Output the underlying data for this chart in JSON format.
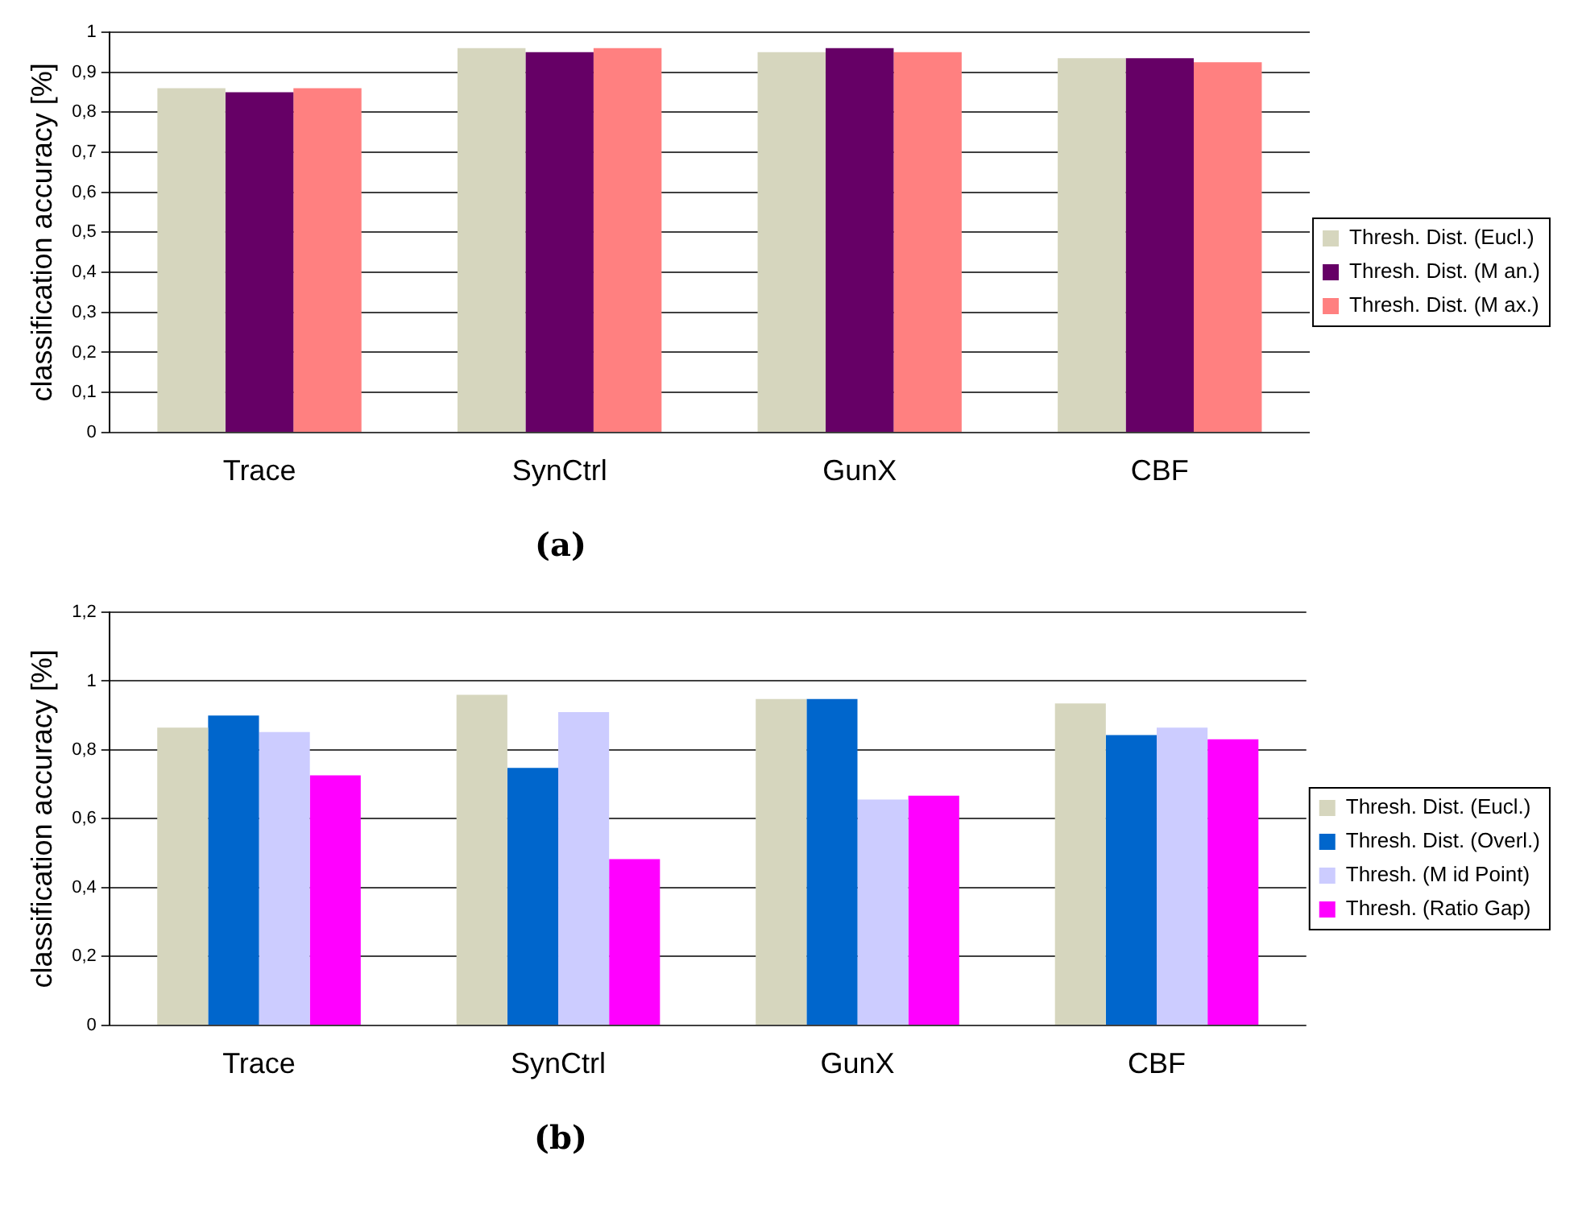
{
  "chart_data": [
    {
      "type": "bar",
      "ylabel": "classification accuracy [%]",
      "categories": [
        "Trace",
        "SynCtrl",
        "GunX",
        "CBF"
      ],
      "series": [
        {
          "name": "Thresh. Dist. (Eucl.)",
          "color": "#d6d6be",
          "values": [
            0.86,
            0.96,
            0.95,
            0.935
          ]
        },
        {
          "name": "Thresh. Dist. (M an.)",
          "color": "#660066",
          "values": [
            0.85,
            0.95,
            0.96,
            0.935
          ]
        },
        {
          "name": "Thresh. Dist. (M ax.)",
          "color": "#ff8080",
          "values": [
            0.86,
            0.96,
            0.95,
            0.925
          ]
        }
      ],
      "ylim": [
        0,
        1
      ],
      "yticks": [
        {
          "value": 0,
          "label": "0"
        },
        {
          "value": 0.1,
          "label": "0,1"
        },
        {
          "value": 0.2,
          "label": "0,2"
        },
        {
          "value": 0.3,
          "label": "0,3"
        },
        {
          "value": 0.4,
          "label": "0,4"
        },
        {
          "value": 0.5,
          "label": "0,5"
        },
        {
          "value": 0.6,
          "label": "0,6"
        },
        {
          "value": 0.7,
          "label": "0,7"
        },
        {
          "value": 0.8,
          "label": "0,8"
        },
        {
          "value": 0.9,
          "label": "0,9"
        },
        {
          "value": 1,
          "label": "1"
        }
      ],
      "grid": "y",
      "legend": "right",
      "annotations": [
        "(a)"
      ]
    },
    {
      "type": "bar",
      "ylabel": "classification accuracy [%]",
      "categories": [
        "Trace",
        "SynCtrl",
        "GunX",
        "CBF"
      ],
      "series": [
        {
          "name": "Thresh. Dist. (Eucl.)",
          "color": "#d6d6be",
          "values": [
            0.865,
            0.96,
            0.948,
            0.935
          ]
        },
        {
          "name": "Thresh. Dist. (Overl.)",
          "color": "#0066cc",
          "values": [
            0.9,
            0.748,
            0.948,
            0.843
          ]
        },
        {
          "name": "Thresh. (M id Point)",
          "color": "#ccccff",
          "values": [
            0.852,
            0.91,
            0.656,
            0.865
          ]
        },
        {
          "name": "Thresh. (Ratio Gap)",
          "color": "#ff00ff",
          "values": [
            0.726,
            0.483,
            0.667,
            0.831
          ]
        }
      ],
      "ylim": [
        0,
        1.2
      ],
      "yticks": [
        {
          "value": 0,
          "label": "0"
        },
        {
          "value": 0.2,
          "label": "0,2"
        },
        {
          "value": 0.4,
          "label": "0,4"
        },
        {
          "value": 0.6,
          "label": "0,6"
        },
        {
          "value": 0.8,
          "label": "0,8"
        },
        {
          "value": 1,
          "label": "1"
        },
        {
          "value": 1.2,
          "label": "1,2"
        }
      ],
      "grid": "y",
      "legend": "right",
      "annotations": [
        "(b)"
      ]
    }
  ]
}
